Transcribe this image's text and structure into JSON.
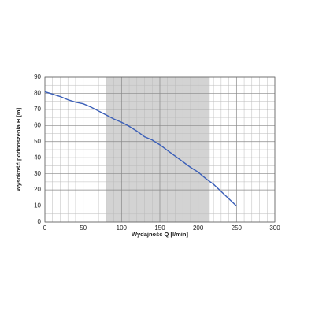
{
  "chart_data": {
    "type": "line",
    "xlabel": "Wydajność Q [l/min]",
    "ylabel": "Wysokość podnoszenia H [m]",
    "x": [
      0,
      10,
      20,
      30,
      40,
      50,
      60,
      70,
      80,
      90,
      100,
      110,
      120,
      130,
      140,
      150,
      160,
      170,
      180,
      190,
      200,
      210,
      220,
      230,
      240,
      250
    ],
    "series": [
      {
        "name": "H",
        "color": "#3b5fb8",
        "values": [
          81,
          79.5,
          78,
          76,
          74.5,
          73.5,
          71.5,
          69,
          66.5,
          64,
          62,
          59.5,
          56.5,
          53,
          51,
          48,
          44.5,
          41,
          37.5,
          34,
          31,
          27,
          23.5,
          19,
          14.5,
          10
        ]
      }
    ],
    "xlim": [
      0,
      300
    ],
    "xticks": [
      0,
      50,
      100,
      150,
      200,
      250,
      300
    ],
    "ylim": [
      0,
      90
    ],
    "yticks": [
      0,
      10,
      20,
      30,
      40,
      50,
      60,
      70,
      80,
      90
    ],
    "shaded_range": [
      80,
      215
    ],
    "shaded_color": "#d3d3d3",
    "grid": true
  }
}
